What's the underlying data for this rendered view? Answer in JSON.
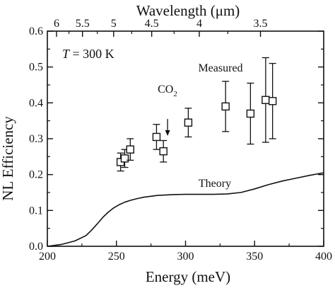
{
  "chart_data": {
    "type": "scatter",
    "xlabel": "Energy (meV)",
    "ylabel": "NL Efficiency",
    "top_xlabel": "Wavelength (μm)",
    "xlim": [
      200,
      400
    ],
    "ylim": [
      0.0,
      0.6
    ],
    "x_ticks": [
      200,
      250,
      300,
      350,
      400
    ],
    "x_tick_labels": [
      "200",
      "250",
      "300",
      "350",
      "400"
    ],
    "y_ticks": [
      0.0,
      0.1,
      0.2,
      0.3,
      0.4,
      0.5,
      0.6
    ],
    "y_tick_labels": [
      "0.0",
      "0.1",
      "0.2",
      "0.3",
      "0.4",
      "0.5",
      "0.6"
    ],
    "top_ticks": [
      6,
      5.5,
      5,
      4.5,
      4,
      3.5
    ],
    "top_tick_labels": [
      "6",
      "5.5",
      "5",
      "4.5",
      "4",
      "3.5"
    ],
    "grid": false,
    "series": [
      {
        "name": "Measured",
        "kind": "scatter-errorbar",
        "marker": "open-square",
        "points": [
          {
            "x": 253,
            "y": 0.235,
            "err": 0.025
          },
          {
            "x": 256,
            "y": 0.245,
            "err": 0.025
          },
          {
            "x": 260,
            "y": 0.27,
            "err": 0.03
          },
          {
            "x": 279,
            "y": 0.305,
            "err": 0.035
          },
          {
            "x": 284,
            "y": 0.265,
            "err": 0.03
          },
          {
            "x": 302,
            "y": 0.345,
            "err": 0.04
          },
          {
            "x": 329,
            "y": 0.39,
            "err": 0.07
          },
          {
            "x": 347,
            "y": 0.37,
            "err": 0.085
          },
          {
            "x": 358,
            "y": 0.408,
            "err": 0.118
          },
          {
            "x": 363,
            "y": 0.405,
            "err": 0.105
          }
        ]
      },
      {
        "name": "Theory",
        "kind": "line",
        "x": [
          200,
          210,
          220,
          228,
          232,
          236,
          240,
          244,
          248,
          252,
          256,
          260,
          265,
          270,
          280,
          290,
          300,
          310,
          320,
          330,
          340,
          350,
          360,
          370,
          380,
          390,
          400
        ],
        "y": [
          0.0,
          0.005,
          0.015,
          0.03,
          0.045,
          0.062,
          0.08,
          0.095,
          0.107,
          0.116,
          0.123,
          0.128,
          0.133,
          0.137,
          0.142,
          0.144,
          0.145,
          0.145,
          0.145,
          0.146,
          0.15,
          0.16,
          0.172,
          0.182,
          0.19,
          0.198,
          0.205
        ]
      }
    ],
    "annotations": {
      "temperature": "T = 300 K",
      "measured_label": "Measured",
      "theory_label": "Theory",
      "co2_label": "CO",
      "co2_subscript": "2",
      "co2_energy": 287,
      "co2_arrow_from": 0.355,
      "co2_arrow_to": 0.308
    }
  }
}
